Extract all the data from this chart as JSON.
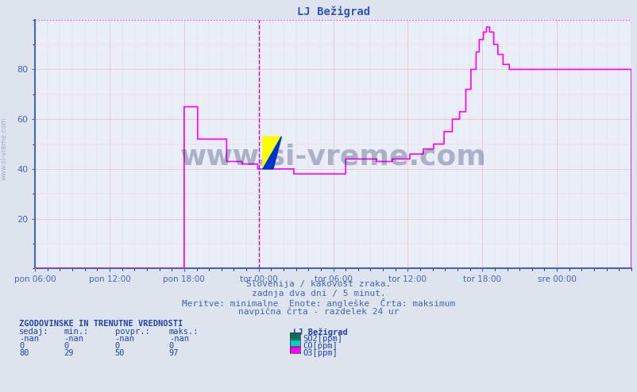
{
  "title": "LJ Bežigrad",
  "title_color": "#3355bb",
  "bg_color": "#dde4ee",
  "plot_bg_color": "#eaeef8",
  "tick_color": "#4466bb",
  "vline_color": "#bb00bb",
  "ymin": 0,
  "ymax": 100,
  "yticks": [
    20,
    40,
    60,
    80
  ],
  "xtick_labels": [
    "pon 06:00",
    "pon 12:00",
    "pon 18:00",
    "tor 00:00",
    "tor 06:00",
    "tor 12:00",
    "tor 18:00",
    "sre 00:00"
  ],
  "num_points": 577,
  "o3_color": "#ff00ff",
  "watermark": "www.si-vreme.com",
  "footer_line1": "Slovenija / kakovost zraka.",
  "footer_line2": "zadnja dva dni / 5 minut.",
  "footer_line3": "Meritve: minimalne  Enote: angleške  Črta: maksimum",
  "footer_line4": "navpična črta - razdelek 24 ur",
  "table_title": "ZGODOVINSKE IN TRENUTNE VREDNOSTI",
  "col_headers": [
    "sedaj:",
    "min.:",
    "povpr.:",
    "maks.:",
    "LJ Bežigrad"
  ],
  "row1_vals": [
    "-nan",
    "-nan",
    "-nan",
    "-nan"
  ],
  "row1_label": "SO2[ppm]",
  "row1_color": "#007755",
  "row2_vals": [
    "0",
    "0",
    "0",
    "0"
  ],
  "row2_label": "CO[ppm]",
  "row2_color": "#00cccc",
  "row3_vals": [
    "80",
    "29",
    "50",
    "97"
  ],
  "row3_label": "O3[ppm]",
  "row3_color": "#ff00ff",
  "left_text": "www.si-vreme.com"
}
